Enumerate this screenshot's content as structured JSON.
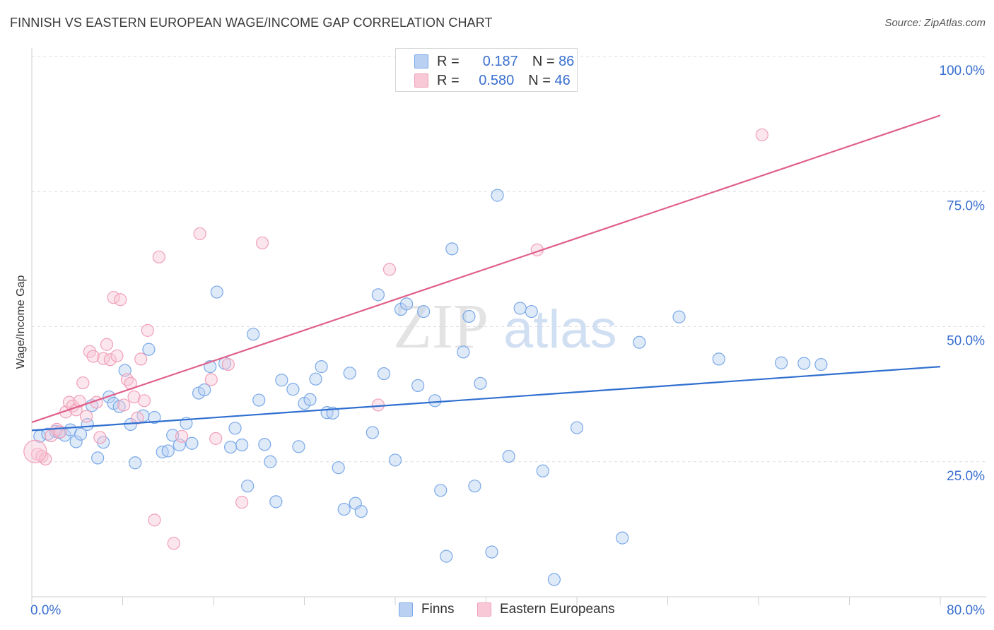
{
  "title": "FINNISH VS EASTERN EUROPEAN WAGE/INCOME GAP CORRELATION CHART",
  "source": "Source: ZipAtlas.com",
  "watermark": {
    "zip": "ZIP",
    "atlas": "atlas"
  },
  "legend": {
    "series": [
      {
        "name": "Finns",
        "r_label": "R =",
        "r_value": "0.187",
        "n_label": "N =",
        "n_value": "86",
        "color": "#7aa8e8",
        "fill": "#b9d0f2"
      },
      {
        "name": "Eastern Europeans",
        "r_label": "R =",
        "r_value": "0.580",
        "n_label": "N =",
        "n_value": "46",
        "color": "#f0a0b8",
        "fill": "#f8c8d6"
      }
    ]
  },
  "chart_data": {
    "type": "scatter",
    "title": "FINNISH VS EASTERN EUROPEAN WAGE/INCOME GAP CORRELATION CHART",
    "xlabel": "",
    "ylabel": "Wage/Income Gap",
    "xlim": [
      0,
      80
    ],
    "ylim": [
      0,
      100
    ],
    "x_tick_labels": [
      "0.0%",
      "80.0%"
    ],
    "y_tick_labels": [
      "25.0%",
      "50.0%",
      "75.0%",
      "100.0%"
    ],
    "y_ticks": [
      25,
      50,
      75,
      100
    ],
    "series": [
      {
        "name": "Finns",
        "color": "#7aa8e8",
        "trend_color": "#2f6fd0",
        "trend": {
          "x": [
            0,
            80
          ],
          "y": [
            30.8,
            42.6
          ]
        },
        "points": [
          [
            0.7,
            29.7
          ],
          [
            1.4,
            30.1
          ],
          [
            2.1,
            30.6
          ],
          [
            2.4,
            30.4
          ],
          [
            2.9,
            29.9
          ],
          [
            3.4,
            30.9
          ],
          [
            3.9,
            28.7
          ],
          [
            4.3,
            30.1
          ],
          [
            4.9,
            31.9
          ],
          [
            5.3,
            35.4
          ],
          [
            5.8,
            25.7
          ],
          [
            6.3,
            28.6
          ],
          [
            6.8,
            37.0
          ],
          [
            7.2,
            35.8
          ],
          [
            7.7,
            35.2
          ],
          [
            8.2,
            41.9
          ],
          [
            8.7,
            31.9
          ],
          [
            9.1,
            24.8
          ],
          [
            9.8,
            33.5
          ],
          [
            10.3,
            45.8
          ],
          [
            10.8,
            33.2
          ],
          [
            11.5,
            26.8
          ],
          [
            12.0,
            27.0
          ],
          [
            12.4,
            29.9
          ],
          [
            13.0,
            28.1
          ],
          [
            13.6,
            32.1
          ],
          [
            14.1,
            28.4
          ],
          [
            14.7,
            37.7
          ],
          [
            15.2,
            38.3
          ],
          [
            15.7,
            42.6
          ],
          [
            16.3,
            56.4
          ],
          [
            17.0,
            43.2
          ],
          [
            17.5,
            27.7
          ],
          [
            17.9,
            31.2
          ],
          [
            18.5,
            28.1
          ],
          [
            19.0,
            20.5
          ],
          [
            19.5,
            48.6
          ],
          [
            20.0,
            36.4
          ],
          [
            20.5,
            28.2
          ],
          [
            21.0,
            25.0
          ],
          [
            21.5,
            17.6
          ],
          [
            22.0,
            40.1
          ],
          [
            23.0,
            38.4
          ],
          [
            23.5,
            27.8
          ],
          [
            24.0,
            35.8
          ],
          [
            24.5,
            36.5
          ],
          [
            25.0,
            40.3
          ],
          [
            25.5,
            42.6
          ],
          [
            26.0,
            34.1
          ],
          [
            26.5,
            34.0
          ],
          [
            27.0,
            23.9
          ],
          [
            27.5,
            16.2
          ],
          [
            28.0,
            41.4
          ],
          [
            28.5,
            17.3
          ],
          [
            29.0,
            15.8
          ],
          [
            30.0,
            30.4
          ],
          [
            30.5,
            55.9
          ],
          [
            31.0,
            41.3
          ],
          [
            32.0,
            25.3
          ],
          [
            32.5,
            53.2
          ],
          [
            33.0,
            54.2
          ],
          [
            34.0,
            39.1
          ],
          [
            34.5,
            52.8
          ],
          [
            35.5,
            36.3
          ],
          [
            36.0,
            19.7
          ],
          [
            36.5,
            7.5
          ],
          [
            37.0,
            64.4
          ],
          [
            38.0,
            45.3
          ],
          [
            38.5,
            51.9
          ],
          [
            39.0,
            20.5
          ],
          [
            39.5,
            39.5
          ],
          [
            40.5,
            8.3
          ],
          [
            41.0,
            74.3
          ],
          [
            42.0,
            26.0
          ],
          [
            43.0,
            53.4
          ],
          [
            44.0,
            52.8
          ],
          [
            45.0,
            23.3
          ],
          [
            46.0,
            3.2
          ],
          [
            48.0,
            31.3
          ],
          [
            52.0,
            10.9
          ],
          [
            53.5,
            47.1
          ],
          [
            57.0,
            51.8
          ],
          [
            60.5,
            44.0
          ],
          [
            66.0,
            43.3
          ],
          [
            68.0,
            43.2
          ],
          [
            69.5,
            43.0
          ]
        ]
      },
      {
        "name": "Eastern Europeans",
        "color": "#f0a0b8",
        "trend_color": "#e0608a",
        "trend": {
          "x": [
            0,
            80
          ],
          "y": [
            32.3,
            89.1
          ]
        },
        "points": [
          [
            0.5,
            26.4
          ],
          [
            0.9,
            26.0
          ],
          [
            1.2,
            25.5
          ],
          [
            1.7,
            29.8
          ],
          [
            2.2,
            31.0
          ],
          [
            2.5,
            30.5
          ],
          [
            3.0,
            34.2
          ],
          [
            3.3,
            36.0
          ],
          [
            3.6,
            35.3
          ],
          [
            3.9,
            34.6
          ],
          [
            4.2,
            36.2
          ],
          [
            4.5,
            39.6
          ],
          [
            4.8,
            33.4
          ],
          [
            5.1,
            45.4
          ],
          [
            5.4,
            44.5
          ],
          [
            5.7,
            36.0
          ],
          [
            6.0,
            29.5
          ],
          [
            6.3,
            44.1
          ],
          [
            6.6,
            46.7
          ],
          [
            6.9,
            43.9
          ],
          [
            7.2,
            55.4
          ],
          [
            7.5,
            44.6
          ],
          [
            7.8,
            55.0
          ],
          [
            8.1,
            35.5
          ],
          [
            8.4,
            40.2
          ],
          [
            8.7,
            39.5
          ],
          [
            9.0,
            37.0
          ],
          [
            9.3,
            33.1
          ],
          [
            9.6,
            44.0
          ],
          [
            9.9,
            36.3
          ],
          [
            10.2,
            49.3
          ],
          [
            10.8,
            14.2
          ],
          [
            11.2,
            62.9
          ],
          [
            12.5,
            9.9
          ],
          [
            13.2,
            29.7
          ],
          [
            14.8,
            67.2
          ],
          [
            15.8,
            40.2
          ],
          [
            16.2,
            29.3
          ],
          [
            17.3,
            43.0
          ],
          [
            18.5,
            17.5
          ],
          [
            20.3,
            65.5
          ],
          [
            30.5,
            35.5
          ],
          [
            31.5,
            60.6
          ],
          [
            44.5,
            64.2
          ],
          [
            64.3,
            85.5
          ],
          [
            0.3,
            26.9
          ]
        ]
      }
    ]
  },
  "bottom_legend": [
    "Finns",
    "Eastern Europeans"
  ]
}
